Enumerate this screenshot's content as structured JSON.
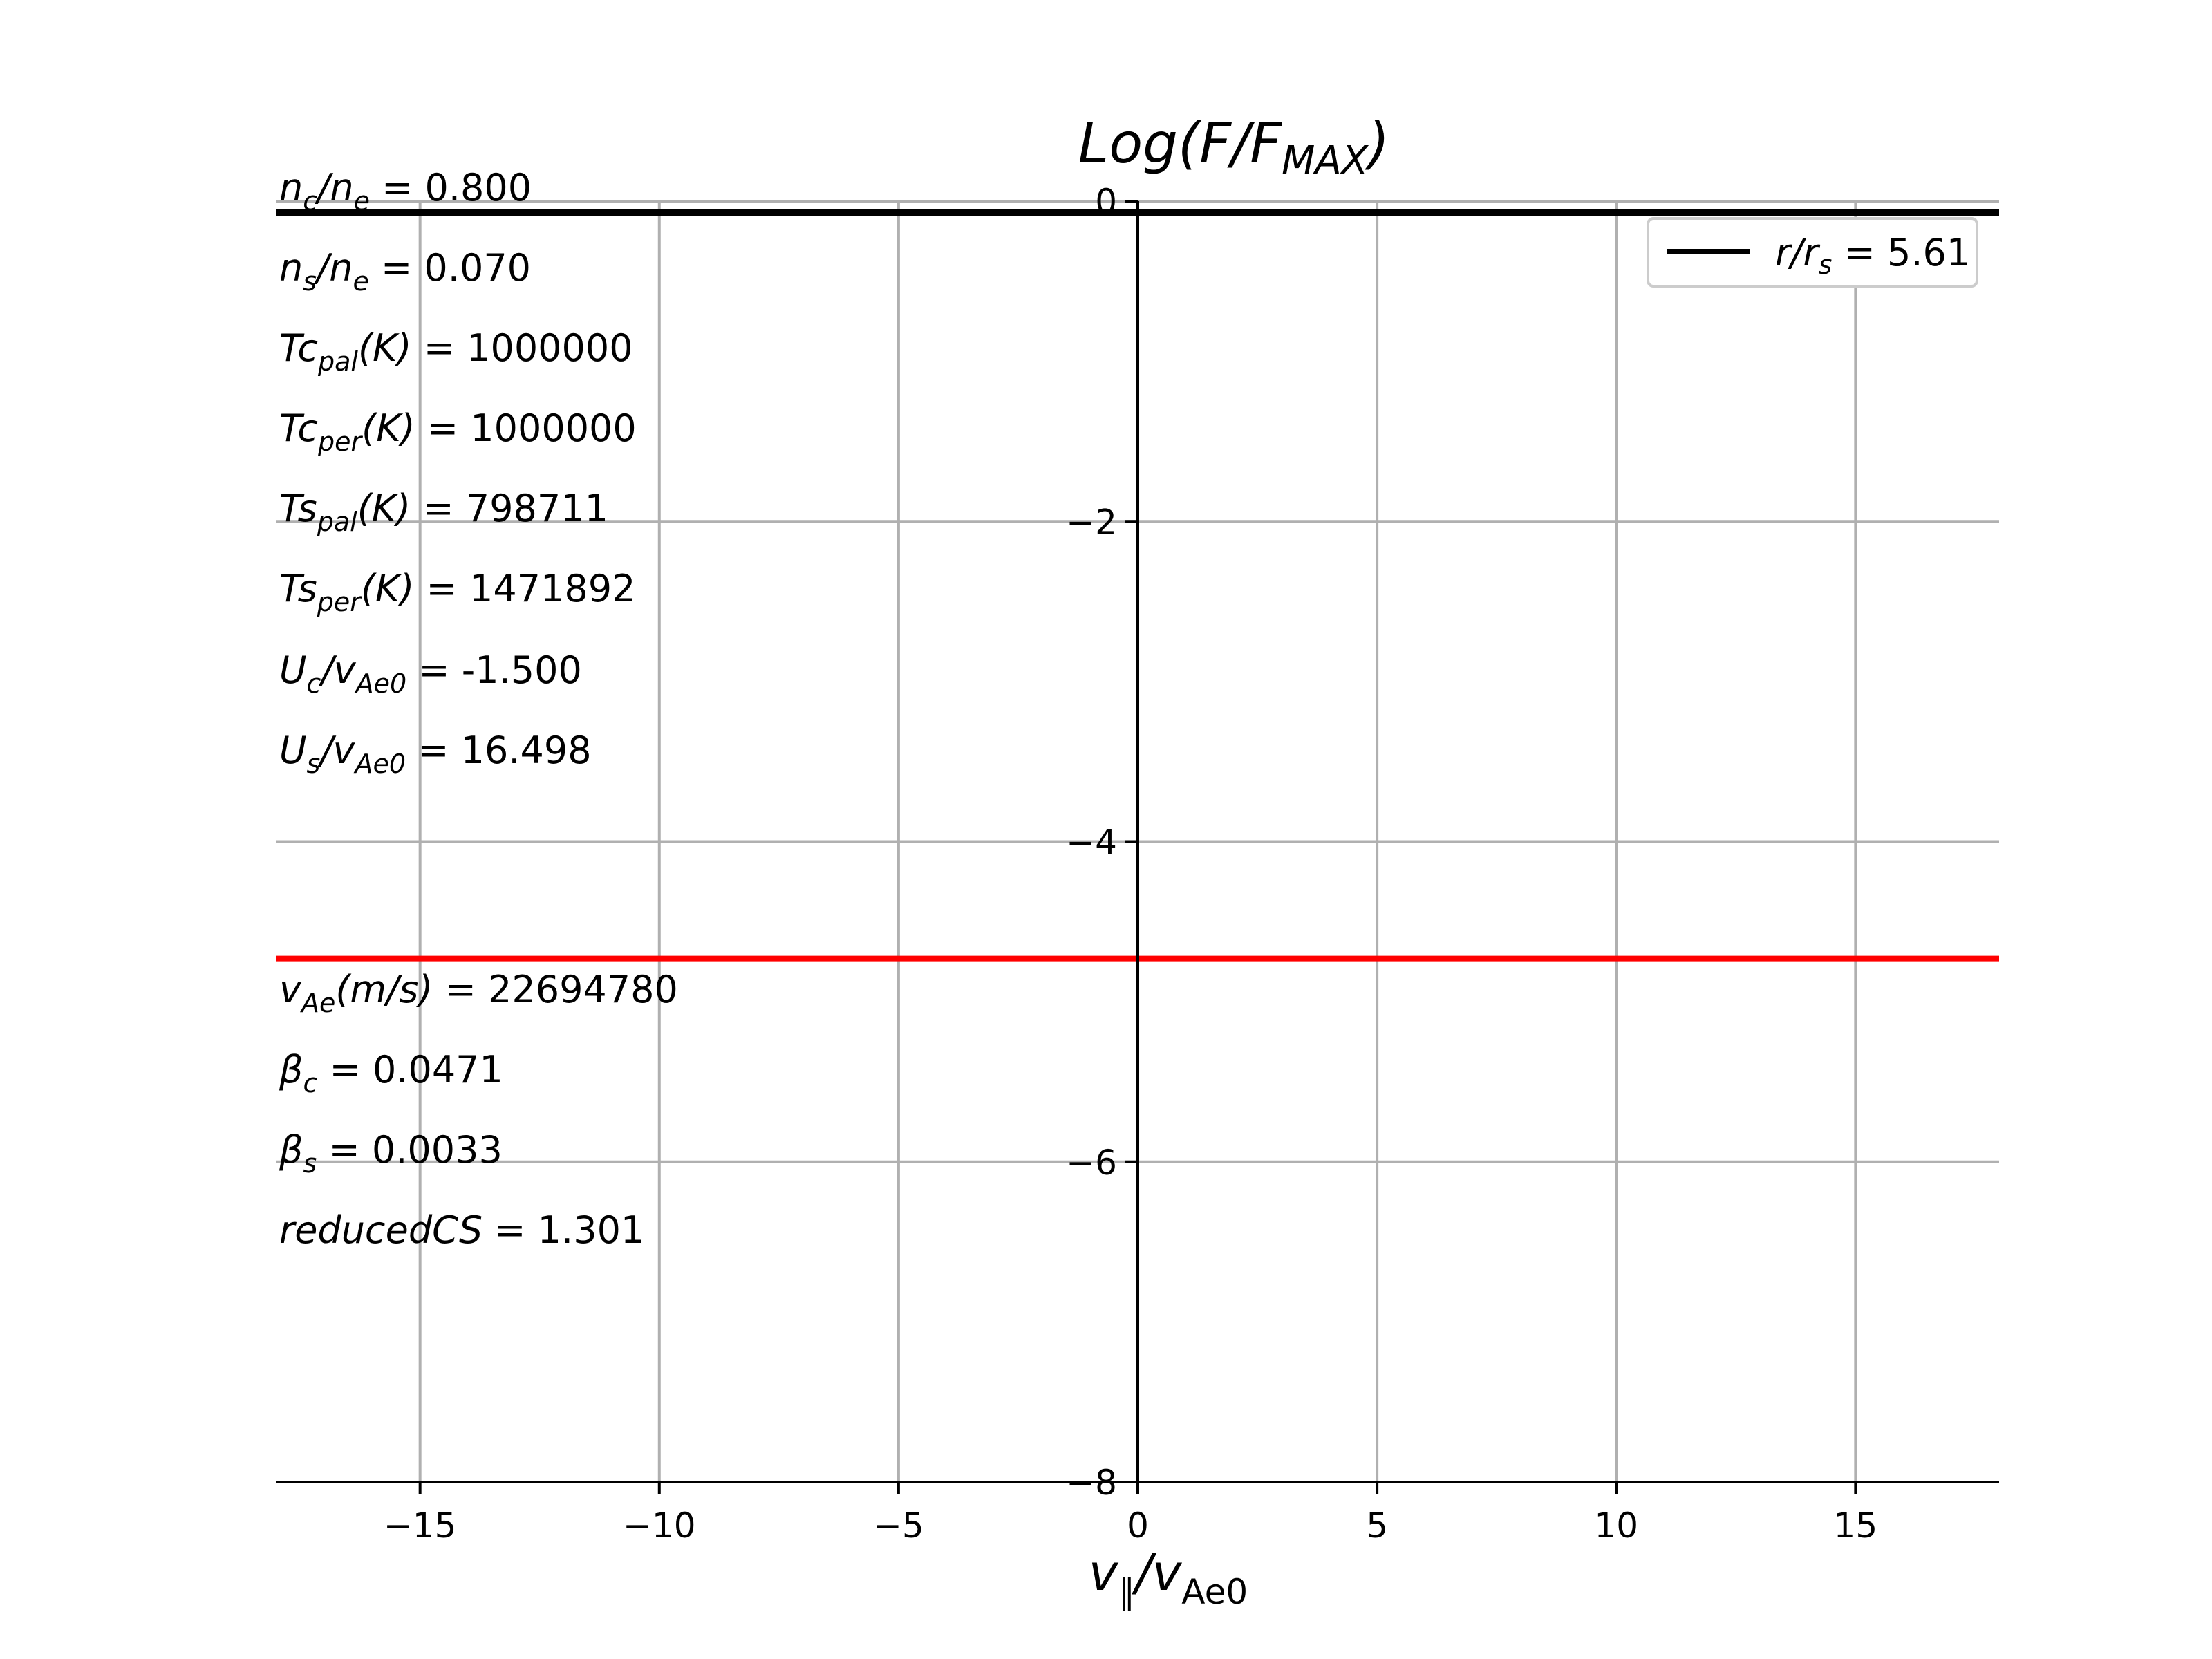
{
  "chart_data": {
    "type": "line",
    "title": {
      "main": "Log(F/F",
      "sub": "MAX",
      "tail": ")"
    },
    "xlabel": {
      "main": "v",
      "sub1": "∥",
      "mid": "/v",
      "sub2": "Ae0"
    },
    "xlim": [
      -18,
      18
    ],
    "ylim": [
      -8,
      0
    ],
    "xticks": [
      -15,
      -10,
      -5,
      0,
      5,
      10,
      15
    ],
    "xtick_labels": [
      "−15",
      "−10",
      "−5",
      "0",
      "5",
      "10",
      "15"
    ],
    "yticks": [
      0,
      -2,
      -4,
      -6,
      -8
    ],
    "ytick_labels": [
      "0",
      "−2",
      "−4",
      "−6",
      "−8"
    ],
    "grid": true,
    "legend_position": "top-right",
    "series": [
      {
        "name": {
          "main": "r/r",
          "sub": "s",
          "tail": " = 5.61"
        },
        "color": "#000000",
        "x": [
          -18,
          18
        ],
        "y": [
          -0.07,
          -0.07
        ]
      }
    ],
    "reference_lines": [
      {
        "orientation": "horizontal",
        "y": -4.73,
        "color": "#ff0000"
      }
    ],
    "annotations": [
      {
        "main": "n",
        "sub": "c",
        "mid": "/n",
        "sub2": "e",
        "value": " = 0.800"
      },
      {
        "main": "n",
        "sub": "s",
        "mid": "/n",
        "sub2": "e",
        "value": " = 0.070"
      },
      {
        "main": "Tc",
        "sub": "pal",
        "mid": "(K)",
        "sub2": "",
        "value": " = 1000000"
      },
      {
        "main": "Tc",
        "sub": "per",
        "mid": "(K)",
        "sub2": "",
        "value": " = 1000000"
      },
      {
        "main": "Ts",
        "sub": "pal",
        "mid": "(K)",
        "sub2": "",
        "value": " = 798711"
      },
      {
        "main": "Ts",
        "sub": "per",
        "mid": "(K)",
        "sub2": "",
        "value": " = 1471892"
      },
      {
        "main": "U",
        "sub": "c",
        "mid": "/v",
        "sub2": "Ae0",
        "value": " = -1.500"
      },
      {
        "main": "U",
        "sub": "s",
        "mid": "/v",
        "sub2": "Ae0",
        "value": " = 16.498"
      },
      {
        "main": "v",
        "sub": "Ae",
        "mid": "(m/s)",
        "sub2": "",
        "value": " = 22694780"
      },
      {
        "main": "β",
        "sub": "c",
        "mid": "",
        "sub2": "",
        "value": " = 0.0471"
      },
      {
        "main": "β",
        "sub": "s",
        "mid": "",
        "sub2": "",
        "value": " = 0.0033"
      },
      {
        "main": "reducedCS",
        "sub": "",
        "mid": "",
        "sub2": "",
        "value": " = 1.301"
      }
    ]
  }
}
